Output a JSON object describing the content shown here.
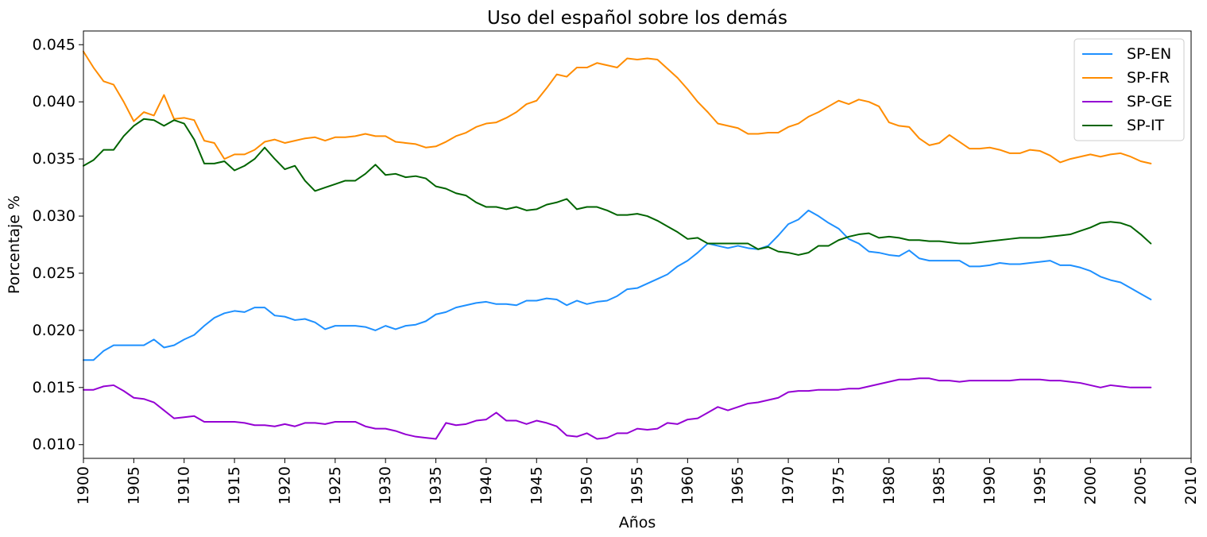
{
  "chart_data": {
    "type": "line",
    "title": "Uso del español sobre los demás",
    "xlabel": "Años",
    "ylabel": "Porcentaje %",
    "xlim": [
      1900,
      2010
    ],
    "ylim": [
      0.0088,
      0.0462
    ],
    "xticks": [
      1900,
      1905,
      1910,
      1915,
      1920,
      1925,
      1930,
      1935,
      1940,
      1945,
      1950,
      1955,
      1960,
      1965,
      1970,
      1975,
      1980,
      1985,
      1990,
      1995,
      2000,
      2005,
      2010
    ],
    "xtick_labels": [
      "1900",
      "1905",
      "1910",
      "1915",
      "1920",
      "1925",
      "1930",
      "1935",
      "1940",
      "1945",
      "1950",
      "1955",
      "1960",
      "1965",
      "1970",
      "1975",
      "1980",
      "1985",
      "1990",
      "1995",
      "2000",
      "2005",
      "2010"
    ],
    "yticks": [
      0.01,
      0.015,
      0.02,
      0.025,
      0.03,
      0.035,
      0.04,
      0.045
    ],
    "ytick_labels": [
      "0.010",
      "0.015",
      "0.020",
      "0.025",
      "0.030",
      "0.035",
      "0.040",
      "0.045"
    ],
    "grid": false,
    "legend_position": "top-right",
    "x": [
      1900,
      1901,
      1902,
      1903,
      1904,
      1905,
      1906,
      1907,
      1908,
      1909,
      1910,
      1911,
      1912,
      1913,
      1914,
      1915,
      1916,
      1917,
      1918,
      1919,
      1920,
      1921,
      1922,
      1923,
      1924,
      1925,
      1926,
      1927,
      1928,
      1929,
      1930,
      1931,
      1932,
      1933,
      1934,
      1935,
      1936,
      1937,
      1938,
      1939,
      1940,
      1941,
      1942,
      1943,
      1944,
      1945,
      1946,
      1947,
      1948,
      1949,
      1950,
      1951,
      1952,
      1953,
      1954,
      1955,
      1956,
      1957,
      1958,
      1959,
      1960,
      1961,
      1962,
      1963,
      1964,
      1965,
      1966,
      1967,
      1968,
      1969,
      1970,
      1971,
      1972,
      1973,
      1974,
      1975,
      1976,
      1977,
      1978,
      1979,
      1980,
      1981,
      1982,
      1983,
      1984,
      1985,
      1986,
      1987,
      1988,
      1989,
      1990,
      1991,
      1992,
      1993,
      1994,
      1995,
      1996,
      1997,
      1998,
      1999,
      2000,
      2001,
      2002,
      2003,
      2004,
      2005,
      2006
    ],
    "series": [
      {
        "name": "SP-EN",
        "color": "#1E90FF",
        "values": [
          0.0174,
          0.0174,
          0.0182,
          0.0187,
          0.0187,
          0.0187,
          0.0187,
          0.0192,
          0.0185,
          0.0187,
          0.0192,
          0.0196,
          0.0204,
          0.0211,
          0.0215,
          0.0217,
          0.0216,
          0.022,
          0.022,
          0.0213,
          0.0212,
          0.0209,
          0.021,
          0.0207,
          0.0201,
          0.0204,
          0.0204,
          0.0204,
          0.0203,
          0.02,
          0.0204,
          0.0201,
          0.0204,
          0.0205,
          0.0208,
          0.0214,
          0.0216,
          0.022,
          0.0222,
          0.0224,
          0.0225,
          0.0223,
          0.0223,
          0.0222,
          0.0226,
          0.0226,
          0.0228,
          0.0227,
          0.0222,
          0.0226,
          0.0223,
          0.0225,
          0.0226,
          0.023,
          0.0236,
          0.0237,
          0.0241,
          0.0245,
          0.0249,
          0.0256,
          0.0261,
          0.0268,
          0.0276,
          0.0274,
          0.0272,
          0.0274,
          0.0272,
          0.0271,
          0.0274,
          0.0283,
          0.0293,
          0.0297,
          0.0305,
          0.03,
          0.0294,
          0.0289,
          0.028,
          0.0276,
          0.0269,
          0.0268,
          0.0266,
          0.0265,
          0.027,
          0.0263,
          0.0261,
          0.0261,
          0.0261,
          0.0261,
          0.0256,
          0.0256,
          0.0257,
          0.0259,
          0.0258,
          0.0258,
          0.0259,
          0.026,
          0.0261,
          0.0257,
          0.0257,
          0.0255,
          0.0252,
          0.0247,
          0.0244,
          0.0242,
          0.0237,
          0.0232,
          0.0227
        ]
      },
      {
        "name": "SP-FR",
        "color": "#FF8C00",
        "values": [
          0.0444,
          0.043,
          0.0418,
          0.0415,
          0.04,
          0.0383,
          0.0391,
          0.0388,
          0.0406,
          0.0385,
          0.0386,
          0.0384,
          0.0366,
          0.0364,
          0.035,
          0.0354,
          0.0354,
          0.0358,
          0.0365,
          0.0367,
          0.0364,
          0.0366,
          0.0368,
          0.0369,
          0.0366,
          0.0369,
          0.0369,
          0.037,
          0.0372,
          0.037,
          0.037,
          0.0365,
          0.0364,
          0.0363,
          0.036,
          0.0361,
          0.0365,
          0.037,
          0.0373,
          0.0378,
          0.0381,
          0.0382,
          0.0386,
          0.0391,
          0.0398,
          0.0401,
          0.0412,
          0.0424,
          0.0422,
          0.043,
          0.043,
          0.0434,
          0.0432,
          0.043,
          0.0438,
          0.0437,
          0.0438,
          0.0437,
          0.0429,
          0.0421,
          0.0411,
          0.04,
          0.0391,
          0.0381,
          0.0379,
          0.0377,
          0.0372,
          0.0372,
          0.0373,
          0.0373,
          0.0378,
          0.0381,
          0.0387,
          0.0391,
          0.0396,
          0.0401,
          0.0398,
          0.0402,
          0.04,
          0.0396,
          0.0382,
          0.0379,
          0.0378,
          0.0368,
          0.0362,
          0.0364,
          0.0371,
          0.0365,
          0.0359,
          0.0359,
          0.036,
          0.0358,
          0.0355,
          0.0355,
          0.0358,
          0.0357,
          0.0353,
          0.0347,
          0.035,
          0.0352,
          0.0354,
          0.0352,
          0.0354,
          0.0355,
          0.0352,
          0.0348,
          0.0346
        ]
      },
      {
        "name": "SP-GE",
        "color": "#9400D3",
        "values": [
          0.0148,
          0.0148,
          0.0151,
          0.0152,
          0.0147,
          0.0141,
          0.014,
          0.0137,
          0.013,
          0.0123,
          0.0124,
          0.0125,
          0.012,
          0.012,
          0.012,
          0.012,
          0.0119,
          0.0117,
          0.0117,
          0.0116,
          0.0118,
          0.0116,
          0.0119,
          0.0119,
          0.0118,
          0.012,
          0.012,
          0.012,
          0.0116,
          0.0114,
          0.0114,
          0.0112,
          0.0109,
          0.0107,
          0.0106,
          0.0105,
          0.0119,
          0.0117,
          0.0118,
          0.0121,
          0.0122,
          0.0128,
          0.0121,
          0.0121,
          0.0118,
          0.0121,
          0.0119,
          0.0116,
          0.0108,
          0.0107,
          0.011,
          0.0105,
          0.0106,
          0.011,
          0.011,
          0.0114,
          0.0113,
          0.0114,
          0.0119,
          0.0118,
          0.0122,
          0.0123,
          0.0128,
          0.0133,
          0.013,
          0.0133,
          0.0136,
          0.0137,
          0.0139,
          0.0141,
          0.0146,
          0.0147,
          0.0147,
          0.0148,
          0.0148,
          0.0148,
          0.0149,
          0.0149,
          0.0151,
          0.0153,
          0.0155,
          0.0157,
          0.0157,
          0.0158,
          0.0158,
          0.0156,
          0.0156,
          0.0155,
          0.0156,
          0.0156,
          0.0156,
          0.0156,
          0.0156,
          0.0157,
          0.0157,
          0.0157,
          0.0156,
          0.0156,
          0.0155,
          0.0154,
          0.0152,
          0.015,
          0.0152,
          0.0151,
          0.015,
          0.015,
          0.015
        ]
      },
      {
        "name": "SP-IT",
        "color": "#006400",
        "values": [
          0.0344,
          0.0349,
          0.0358,
          0.0358,
          0.037,
          0.0379,
          0.0385,
          0.0384,
          0.0379,
          0.0384,
          0.0381,
          0.0367,
          0.0346,
          0.0346,
          0.0348,
          0.034,
          0.0344,
          0.035,
          0.036,
          0.035,
          0.0341,
          0.0344,
          0.0331,
          0.0322,
          0.0325,
          0.0328,
          0.0331,
          0.0331,
          0.0337,
          0.0345,
          0.0336,
          0.0337,
          0.0334,
          0.0335,
          0.0333,
          0.0326,
          0.0324,
          0.032,
          0.0318,
          0.0312,
          0.0308,
          0.0308,
          0.0306,
          0.0308,
          0.0305,
          0.0306,
          0.031,
          0.0312,
          0.0315,
          0.0306,
          0.0308,
          0.0308,
          0.0305,
          0.0301,
          0.0301,
          0.0302,
          0.03,
          0.0296,
          0.0291,
          0.0286,
          0.028,
          0.0281,
          0.0276,
          0.0276,
          0.0276,
          0.0276,
          0.0276,
          0.0271,
          0.0273,
          0.0269,
          0.0268,
          0.0266,
          0.0268,
          0.0274,
          0.0274,
          0.0279,
          0.0282,
          0.0284,
          0.0285,
          0.0281,
          0.0282,
          0.0281,
          0.0279,
          0.0279,
          0.0278,
          0.0278,
          0.0277,
          0.0276,
          0.0276,
          0.0277,
          0.0278,
          0.0279,
          0.028,
          0.0281,
          0.0281,
          0.0281,
          0.0282,
          0.0283,
          0.0284,
          0.0287,
          0.029,
          0.0294,
          0.0295,
          0.0294,
          0.0291,
          0.0284,
          0.0276
        ]
      }
    ]
  }
}
